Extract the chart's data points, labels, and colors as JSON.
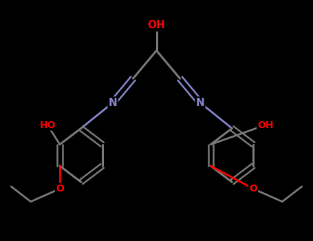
{
  "background_color": "#000000",
  "bond_color": "#7a7a7a",
  "atom_colors": {
    "O": "#ff0000",
    "N": "#8888cc",
    "C": "#7a7a7a"
  },
  "figsize": [
    4.55,
    3.5
  ],
  "dpi": 100,
  "xlim": [
    -2.8,
    2.8
  ],
  "ylim": [
    -1.5,
    2.5
  ]
}
